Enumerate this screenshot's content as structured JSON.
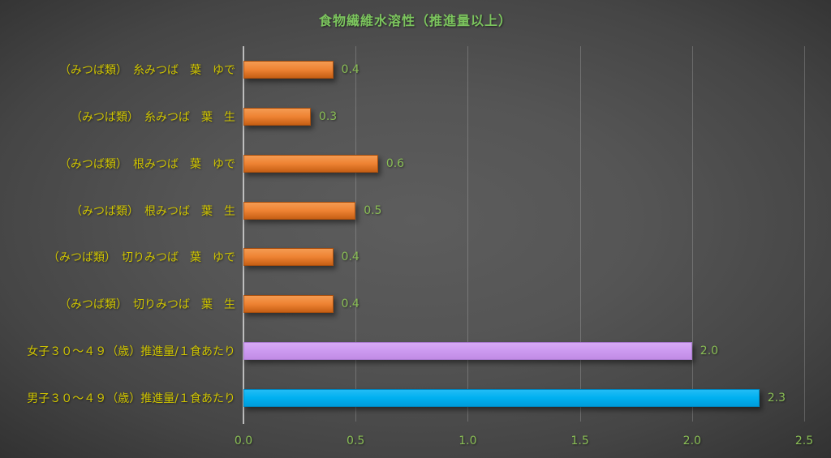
{
  "chart_data": {
    "type": "bar",
    "orientation": "horizontal",
    "title": "食物繊維水溶性（推進量以上）",
    "categories": [
      "（みつば類）　糸みつば　葉　ゆで",
      "（みつば類）　糸みつば　葉　生",
      "（みつば類）　根みつば　葉　ゆで",
      "（みつば類）　根みつば　葉　生",
      "（みつば類）　切りみつば　葉　ゆで",
      "（みつば類）　切りみつば　葉　生",
      "女子３０～４９（歳）推進量/１食あたり",
      "男子３０～４９（歳）推進量/１食あたり"
    ],
    "values": [
      0.4,
      0.3,
      0.6,
      0.5,
      0.4,
      0.4,
      2.0,
      2.3
    ],
    "value_labels": [
      "0.4",
      "0.3",
      "0.6",
      "0.5",
      "0.4",
      "0.4",
      "2.0",
      "2.3"
    ],
    "bar_colors": [
      "orange",
      "orange",
      "orange",
      "orange",
      "orange",
      "orange",
      "purple",
      "blue"
    ],
    "xlabel": "",
    "ylabel": "",
    "xlim": [
      0,
      2.5
    ],
    "xticks": [
      "0.0",
      "0.5",
      "1.0",
      "1.5",
      "2.0",
      "2.5"
    ],
    "grid": true,
    "legend": false
  },
  "colors": {
    "title": "#7cc55e",
    "category_label": "#cfc400",
    "value_label": "#8abf55",
    "tick_label": "#8abf55",
    "gridline": "rgba(255,255,255,0.20)",
    "axis_line": "rgba(225,225,225,0.75)",
    "palette": {
      "orange": {
        "top": "#f59b52",
        "mid": "#ee8232",
        "bottom": "#c65f14",
        "border": "#a84f0f"
      },
      "purple": {
        "top": "#d7a9f5",
        "mid": "#cc99f0",
        "bottom": "#c28ce6",
        "border": "#aa7bd0"
      },
      "blue": {
        "top": "#22bcf5",
        "mid": "#00b0f0",
        "bottom": "#009cda",
        "border": "#0086bf"
      }
    },
    "background_center": "#5c5c5c",
    "background_edge": "#262626"
  }
}
